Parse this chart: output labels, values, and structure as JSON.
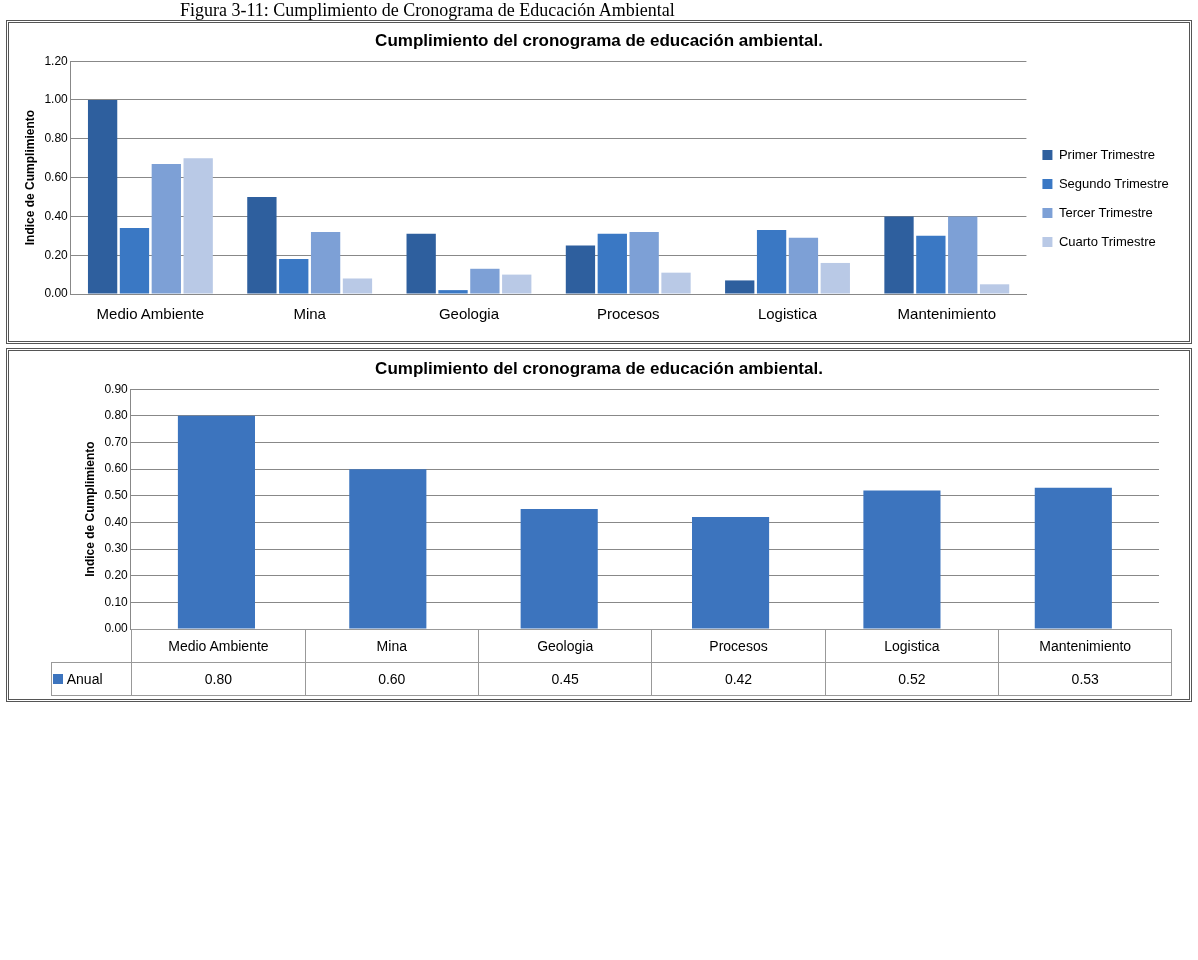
{
  "chart_data": [
    {
      "type": "bar",
      "title": "Cumplimiento del cronograma de educación ambiental.",
      "ylabel": "Indice de Cumplimiento",
      "annotations": [
        "Figura 3-11: Cumplimiento de Cronograma de Educación Ambiental"
      ],
      "categories": [
        "Medio Ambiente",
        "Mina",
        "Geologia",
        "Procesos",
        "Logistica",
        "Mantenimiento"
      ],
      "series": [
        {
          "name": "Primer Trimestre",
          "color": "#2e5f9e",
          "values": [
            1.0,
            0.5,
            0.31,
            0.25,
            0.07,
            0.4
          ]
        },
        {
          "name": "Segundo Trimestre",
          "color": "#3a78c4",
          "values": [
            0.34,
            0.18,
            0.02,
            0.31,
            0.33,
            0.3
          ]
        },
        {
          "name": "Tercer Trimestre",
          "color": "#7da0d6",
          "values": [
            0.67,
            0.32,
            0.13,
            0.32,
            0.29,
            0.4
          ]
        },
        {
          "name": "Cuarto Trimestre",
          "color": "#b9c9e6",
          "values": [
            0.7,
            0.08,
            0.1,
            0.11,
            0.16,
            0.05
          ]
        }
      ],
      "ylim": [
        0,
        1.2
      ],
      "yticks": [
        {
          "value": 0,
          "label": "0.00"
        },
        {
          "value": 0.2,
          "label": "0.20"
        },
        {
          "value": 0.4,
          "label": "0.40"
        },
        {
          "value": 0.6,
          "label": "0.60"
        },
        {
          "value": 0.8,
          "label": "0.80"
        },
        {
          "value": 1.0,
          "label": "1.00"
        },
        {
          "value": 1.2,
          "label": "1.20"
        }
      ],
      "grid": "y",
      "legend": "right"
    },
    {
      "type": "bar",
      "title": "Cumplimiento del cronograma  de educación  ambiental.",
      "ylabel": "Indice de Cumplimiento",
      "categories": [
        "Medio Ambiente",
        "Mina",
        "Geologia",
        "Procesos",
        "Logistica",
        "Mantenimiento"
      ],
      "series": [
        {
          "name": "Anual",
          "color": "#3c74be",
          "values": [
            0.8,
            0.6,
            0.45,
            0.42,
            0.52,
            0.53
          ],
          "value_labels": [
            "0.80",
            "0.60",
            "0.45",
            "0.42",
            "0.52",
            "0.53"
          ]
        }
      ],
      "ylim": [
        0,
        0.9
      ],
      "yticks": [
        {
          "value": 0,
          "label": "0.00"
        },
        {
          "value": 0.1,
          "label": "0.10"
        },
        {
          "value": 0.2,
          "label": "0.20"
        },
        {
          "value": 0.3,
          "label": "0.30"
        },
        {
          "value": 0.4,
          "label": "0.40"
        },
        {
          "value": 0.5,
          "label": "0.50"
        },
        {
          "value": 0.6,
          "label": "0.60"
        },
        {
          "value": 0.7,
          "label": "0.70"
        },
        {
          "value": 0.8,
          "label": "0.80"
        },
        {
          "value": 0.9,
          "label": "0.90"
        }
      ],
      "grid": "y"
    }
  ]
}
